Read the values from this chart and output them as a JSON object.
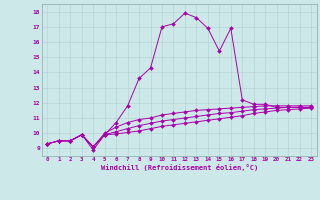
{
  "xlabel": "Windchill (Refroidissement éolien,°C)",
  "bg_color": "#cce8e8",
  "line_color": "#aa00aa",
  "xlim": [
    -0.5,
    23.5
  ],
  "ylim": [
    8.5,
    18.5
  ],
  "xticks": [
    0,
    1,
    2,
    3,
    4,
    5,
    6,
    7,
    8,
    9,
    10,
    11,
    12,
    13,
    14,
    15,
    16,
    17,
    18,
    19,
    20,
    21,
    22,
    23
  ],
  "yticks": [
    9,
    10,
    11,
    12,
    13,
    14,
    15,
    16,
    17,
    18
  ],
  "lines": [
    [
      9.3,
      9.5,
      9.5,
      9.9,
      8.9,
      9.9,
      10.7,
      11.8,
      13.6,
      14.3,
      17.0,
      17.2,
      17.9,
      17.6,
      16.9,
      15.4,
      16.9,
      12.2,
      11.9,
      11.9,
      11.7,
      11.7,
      11.7,
      11.7
    ],
    [
      9.3,
      9.5,
      9.5,
      9.9,
      9.1,
      10.0,
      10.4,
      10.7,
      10.9,
      11.0,
      11.2,
      11.3,
      11.4,
      11.5,
      11.55,
      11.6,
      11.65,
      11.7,
      11.75,
      11.8,
      11.8,
      11.8,
      11.8,
      11.8
    ],
    [
      9.3,
      9.5,
      9.5,
      9.9,
      9.1,
      9.9,
      10.1,
      10.3,
      10.5,
      10.65,
      10.8,
      10.9,
      11.0,
      11.1,
      11.2,
      11.3,
      11.35,
      11.45,
      11.55,
      11.6,
      11.65,
      11.7,
      11.7,
      11.7
    ],
    [
      9.3,
      9.5,
      9.5,
      9.9,
      9.1,
      9.9,
      9.95,
      10.05,
      10.15,
      10.3,
      10.45,
      10.55,
      10.65,
      10.75,
      10.85,
      10.95,
      11.05,
      11.15,
      11.3,
      11.4,
      11.5,
      11.55,
      11.6,
      11.65
    ]
  ]
}
